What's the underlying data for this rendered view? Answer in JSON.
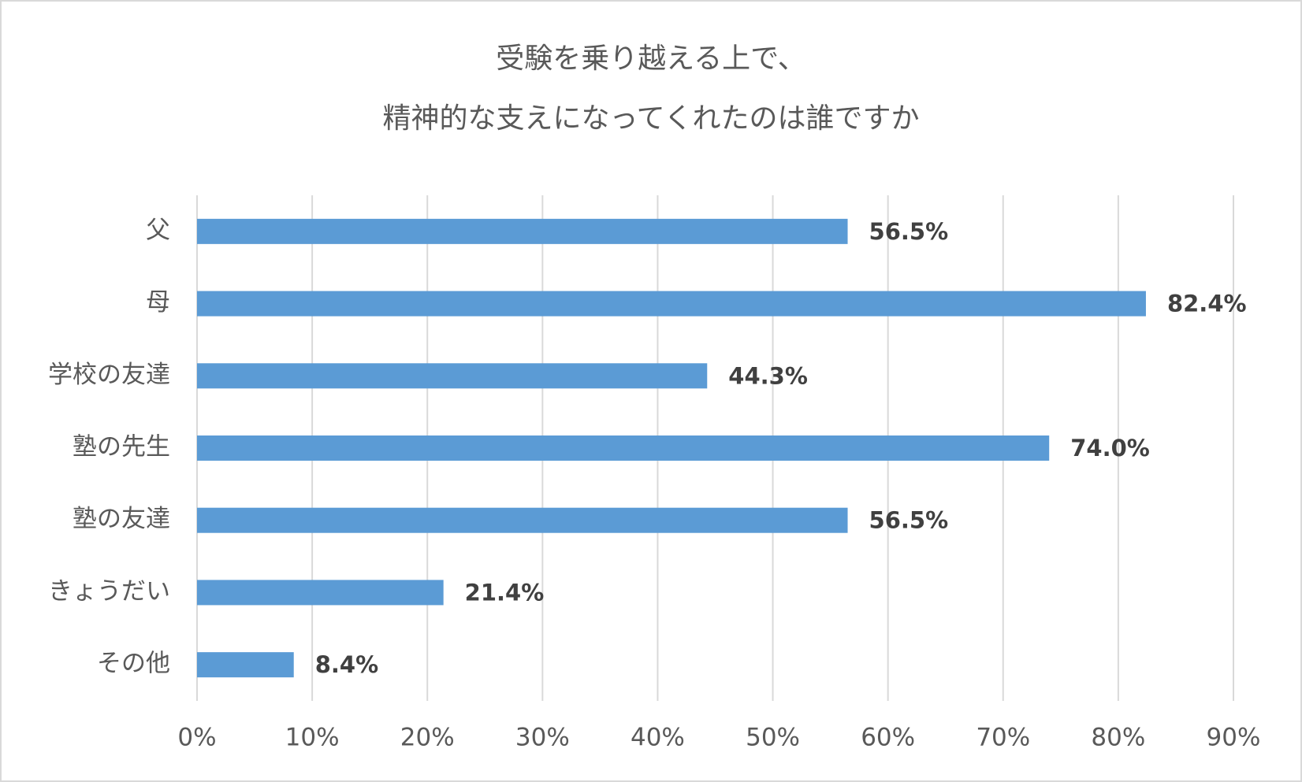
{
  "chart_data": {
    "type": "barh",
    "title": [
      "受験を乗り越える上で、",
      "精神的な支えになってくれたのは誰ですか"
    ],
    "categories": [
      "父",
      "母",
      "学校の友達",
      "塾の先生",
      "塾の友達",
      "きょうだい",
      "その他"
    ],
    "values": [
      56.5,
      82.4,
      44.3,
      74.0,
      56.5,
      21.4,
      8.4
    ],
    "value_labels": [
      "56.5%",
      "82.4%",
      "44.3%",
      "74.0%",
      "56.5%",
      "21.4%",
      "8.4%"
    ],
    "color": "#5b9bd5",
    "xlim": [
      0,
      90
    ],
    "xticks": [
      {
        "value": 0,
        "label": "0%"
      },
      {
        "value": 10,
        "label": "10%"
      },
      {
        "value": 20,
        "label": "20%"
      },
      {
        "value": 30,
        "label": "30%"
      },
      {
        "value": 40,
        "label": "40%"
      },
      {
        "value": 50,
        "label": "50%"
      },
      {
        "value": 60,
        "label": "60%"
      },
      {
        "value": 70,
        "label": "70%"
      },
      {
        "value": 80,
        "label": "80%"
      },
      {
        "value": 90,
        "label": "90%"
      }
    ],
    "grid": true
  }
}
